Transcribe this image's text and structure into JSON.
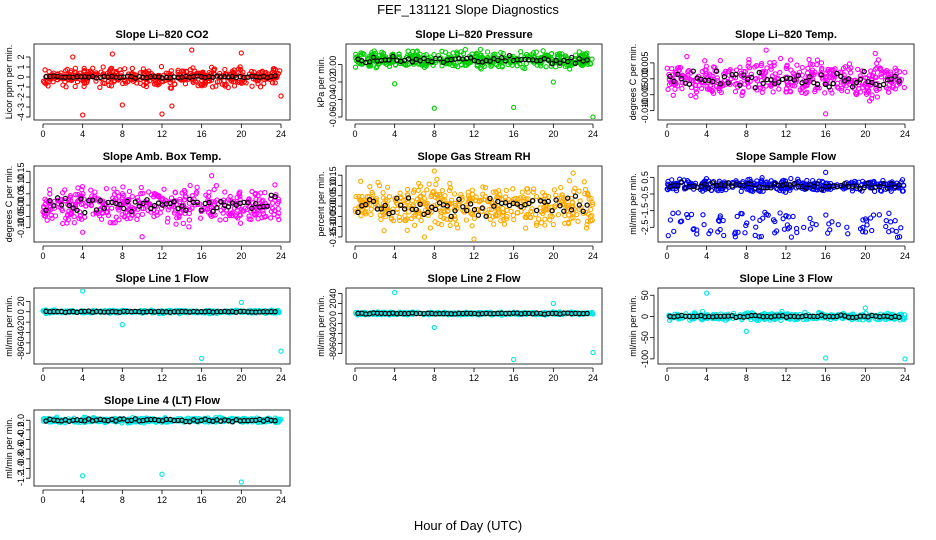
{
  "title": "FEF_131121  Slope Diagnostics",
  "xlabel": "Hour of Day (UTC)",
  "colors": {
    "black": "#000000"
  },
  "chart_data": [
    {
      "type": "scatter",
      "title": "Slope Li–820 CO2",
      "ylabel": "Licor ppm per min.",
      "xlim": [
        0,
        24
      ],
      "ylim": [
        -4,
        3
      ],
      "xticks": [
        0,
        4,
        8,
        12,
        16,
        20,
        24
      ],
      "yticks": [
        -4,
        -3,
        -2,
        -1,
        0,
        1,
        2
      ],
      "ytick_labels": [
        "-4",
        "-3",
        "-2",
        "-1",
        "0",
        "1",
        "2"
      ],
      "color": "#ff0000",
      "ref_value": 0,
      "spread": 1.3,
      "ref_spread": 0.15,
      "outliers": [
        [
          4,
          -3.8
        ],
        [
          12,
          -3.7
        ],
        [
          8,
          -2.8
        ],
        [
          20,
          2.4
        ],
        [
          15,
          2.7
        ],
        [
          13,
          -2.9
        ],
        [
          24,
          -1.9
        ],
        [
          3,
          2.0
        ],
        [
          7,
          2.3
        ]
      ]
    },
    {
      "type": "scatter",
      "title": "Slope Li–820 Pressure",
      "ylabel": "kPa per min.",
      "xlim": [
        0,
        24
      ],
      "ylim": [
        -0.06,
        0.02
      ],
      "xticks": [
        0,
        4,
        8,
        12,
        16,
        20,
        24
      ],
      "yticks": [
        -0.06,
        -0.04,
        -0.02,
        0.0
      ],
      "ytick_labels": [
        "-0.06",
        "-0.04",
        "-0.02",
        "0.00"
      ],
      "color": "#00cc00",
      "ref_value": 0.005,
      "spread": 0.014,
      "ref_spread": 0.006,
      "outliers": [
        [
          8,
          -0.05
        ],
        [
          16,
          -0.049
        ],
        [
          24,
          -0.06
        ],
        [
          4,
          -0.022
        ],
        [
          20,
          -0.02
        ]
      ]
    },
    {
      "type": "scatter",
      "title": "Slope Li–820 Temp.",
      "ylabel": "degrees C per min.",
      "xlim": [
        0,
        24
      ],
      "ylim": [
        -0.012,
        0.01
      ],
      "xticks": [
        0,
        4,
        8,
        12,
        16,
        20,
        24
      ],
      "yticks": [
        -0.01,
        -0.005,
        0.0,
        0.005
      ],
      "ytick_labels": [
        "-0.010",
        "-0.005",
        "0.000",
        "0.005"
      ],
      "color": "#ff00ff",
      "ref_value": 0.0,
      "spread": 0.008,
      "ref_spread": 0.004,
      "outliers": [
        [
          10,
          0.009
        ],
        [
          16,
          -0.011
        ],
        [
          21,
          0.008
        ],
        [
          2,
          0.007
        ]
      ]
    },
    {
      "type": "scatter",
      "title": "Slope Amb. Box Temp.",
      "ylabel": "degrees C per min.",
      "xlim": [
        0,
        24
      ],
      "ylim": [
        -0.15,
        0.16
      ],
      "xticks": [
        0,
        4,
        8,
        12,
        16,
        20,
        24
      ],
      "yticks": [
        -0.1,
        -0.05,
        0.0,
        0.05,
        0.1,
        0.15
      ],
      "ytick_labels": [
        "-0.10",
        "-0.05",
        "0.00",
        "0.05",
        "0.10",
        "0.15"
      ],
      "color": "#ff00ff",
      "ref_value": 0.0,
      "spread": 0.11,
      "ref_spread": 0.06,
      "outliers": [
        [
          10,
          -0.14
        ],
        [
          17,
          0.13
        ],
        [
          4,
          -0.12
        ]
      ]
    },
    {
      "type": "scatter",
      "title": "Slope Gas Stream RH",
      "ylabel": "percent per min.",
      "xlim": [
        0,
        24
      ],
      "ylim": [
        -0.16,
        0.18
      ],
      "xticks": [
        0,
        4,
        8,
        12,
        16,
        20,
        24
      ],
      "yticks": [
        -0.15,
        -0.1,
        -0.05,
        0.0,
        0.05,
        0.1,
        0.15
      ],
      "ytick_labels": [
        "-0.15",
        "-0.10",
        "-0.05",
        "0.00",
        "0.05",
        "0.10",
        "0.15"
      ],
      "color": "#ffaa00",
      "ref_value": 0.0,
      "spread": 0.15,
      "ref_spread": 0.07,
      "outliers": [
        [
          7,
          -0.15
        ],
        [
          12,
          -0.16
        ],
        [
          8,
          0.17
        ],
        [
          22,
          0.16
        ]
      ]
    },
    {
      "type": "scatter",
      "title": "Slope Sample Flow",
      "ylabel": "ml/min per min.",
      "xlim": [
        0,
        24
      ],
      "ylim": [
        -3.2,
        1.0
      ],
      "xticks": [
        0,
        4,
        8,
        12,
        16,
        20,
        24
      ],
      "yticks": [
        -2.5,
        -1.5,
        -0.5,
        0.5
      ],
      "ytick_labels": [
        "-2.5",
        "-1.5",
        "-0.5",
        "0.5"
      ],
      "color": "#0000ff",
      "ref_value": 0.0,
      "spread": 0.55,
      "ref_spread": 0.3,
      "low_band": [
        -3.1,
        -1.6
      ],
      "outliers": [
        [
          16,
          0.8
        ],
        [
          3,
          -2.9
        ]
      ]
    },
    {
      "type": "scatter",
      "title": "Slope Line 1 Flow",
      "ylabel": "ml/min per min.",
      "xlim": [
        0,
        24
      ],
      "ylim": [
        -95,
        40
      ],
      "xticks": [
        0,
        4,
        8,
        12,
        16,
        20,
        24
      ],
      "yticks": [
        -80,
        -60,
        -40,
        -20,
        0,
        20
      ],
      "ytick_labels": [
        "-80",
        "-60",
        "-40",
        "-20",
        "0",
        "20"
      ],
      "color": "#00e5e5",
      "ref_value": 0.0,
      "spread": 4,
      "ref_spread": 1.5,
      "outliers": [
        [
          4,
          40
        ],
        [
          8,
          -25
        ],
        [
          16,
          -90
        ],
        [
          20,
          18
        ],
        [
          24,
          -76
        ]
      ]
    },
    {
      "type": "scatter",
      "title": "Slope Line 2 Flow",
      "ylabel": "ml/min per min.",
      "xlim": [
        0,
        24
      ],
      "ylim": [
        -95,
        45
      ],
      "xticks": [
        0,
        4,
        8,
        12,
        16,
        20,
        24
      ],
      "yticks": [
        -80,
        -60,
        -40,
        -20,
        0,
        20,
        40
      ],
      "ytick_labels": [
        "-80",
        "-60",
        "-40",
        "-20",
        "0",
        "20",
        "40"
      ],
      "color": "#00e5e5",
      "ref_value": 0.0,
      "spread": 4,
      "ref_spread": 1.5,
      "outliers": [
        [
          4,
          42
        ],
        [
          8,
          -28
        ],
        [
          16,
          -92
        ],
        [
          20,
          20
        ],
        [
          24,
          -78
        ]
      ]
    },
    {
      "type": "scatter",
      "title": "Slope Line 3 Flow",
      "ylabel": "ml/min per min.",
      "xlim": [
        0,
        24
      ],
      "ylim": [
        -105,
        60
      ],
      "xticks": [
        0,
        4,
        8,
        12,
        16,
        20,
        24
      ],
      "yticks": [
        -100,
        -50,
        0,
        50
      ],
      "ytick_labels": [
        "-100",
        "-50",
        "0",
        "50"
      ],
      "color": "#00e5e5",
      "ref_value": 0.0,
      "spread": 12,
      "ref_spread": 4,
      "outliers": [
        [
          4,
          55
        ],
        [
          8,
          -35
        ],
        [
          16,
          -98
        ],
        [
          20,
          20
        ],
        [
          24,
          -100
        ]
      ]
    },
    {
      "type": "scatter",
      "title": "Slope Line 4 (LT) Flow",
      "ylabel": "ml/min per min.",
      "xlim": [
        0,
        24
      ],
      "ylim": [
        -1.3,
        0.15
      ],
      "xticks": [
        0,
        4,
        8,
        12,
        16,
        20,
        24
      ],
      "yticks": [
        -1.2,
        -1.0,
        -0.8,
        -0.6,
        -0.4,
        -0.2,
        0.0
      ],
      "ytick_labels": [
        "-1.2",
        "-1.0",
        "-0.8",
        "-0.6",
        "-0.4",
        "-0.2",
        "0.0"
      ],
      "color": "#00e5e5",
      "ref_value": 0.0,
      "spread": 0.07,
      "ref_spread": 0.04,
      "outliers": [
        [
          4,
          -1.15
        ],
        [
          12,
          -1.12
        ],
        [
          20,
          -1.28
        ]
      ]
    }
  ]
}
